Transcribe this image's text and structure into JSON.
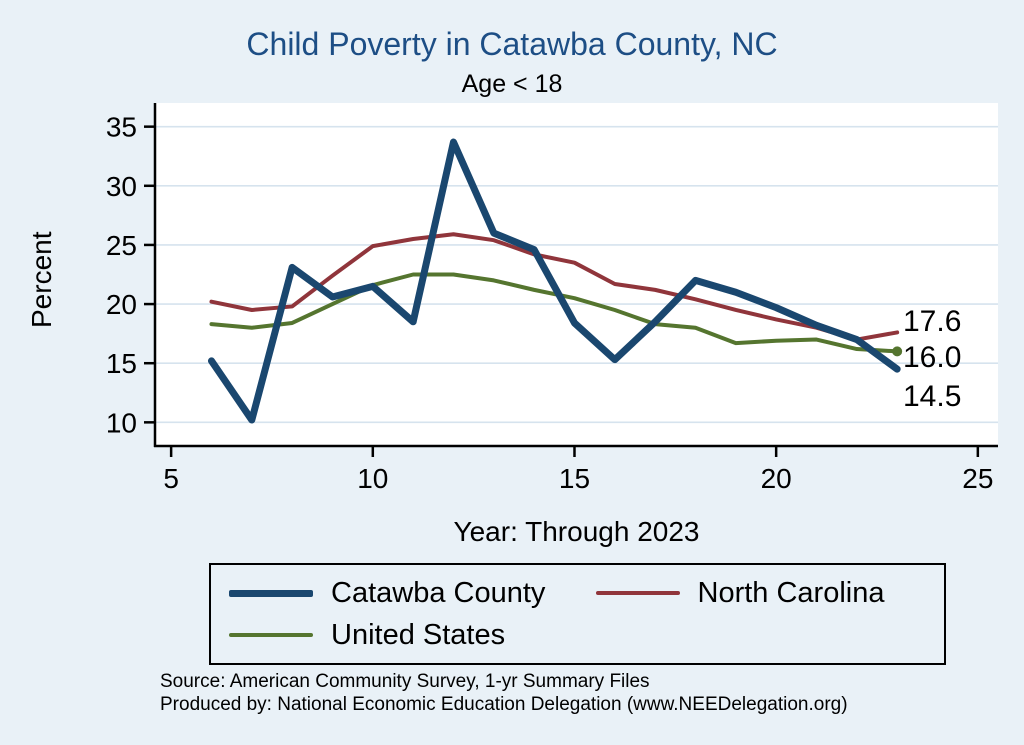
{
  "chart_data": {
    "type": "line",
    "title": "Child Poverty in Catawba County, NC",
    "subtitle": "Age < 18",
    "xlabel": "Year: Through 2023",
    "ylabel": "Percent",
    "xlim": [
      4.6,
      25.5
    ],
    "ylim": [
      8.0,
      37.0
    ],
    "xticks": [
      5,
      10,
      15,
      20,
      25
    ],
    "yticks": [
      10,
      15,
      20,
      25,
      30,
      35
    ],
    "grid": true,
    "legend_position": "bottom",
    "x": [
      6,
      7,
      8,
      9,
      10,
      11,
      12,
      13,
      14,
      15,
      16,
      17,
      18,
      19,
      20,
      21,
      22,
      23
    ],
    "series": [
      {
        "name": "Catawba County",
        "color": "#1a476f",
        "width": 7,
        "values": [
          15.2,
          10.2,
          23.1,
          20.6,
          21.5,
          18.5,
          33.7,
          26.0,
          24.6,
          18.4,
          15.3,
          18.5,
          22.0,
          21.0,
          19.7,
          18.2,
          17.0,
          14.5
        ]
      },
      {
        "name": "North Carolina",
        "color": "#90353b",
        "width": 4,
        "values": [
          20.2,
          19.5,
          19.8,
          22.4,
          24.9,
          25.5,
          25.9,
          25.4,
          24.2,
          23.5,
          21.7,
          21.2,
          20.4,
          19.5,
          18.7,
          18.0,
          17.0,
          17.6
        ]
      },
      {
        "name": "United States",
        "color": "#55752f",
        "width": 4,
        "end_marker": true,
        "values": [
          18.3,
          18.0,
          18.4,
          20.0,
          21.6,
          22.5,
          22.5,
          22.0,
          21.2,
          20.5,
          19.5,
          18.3,
          18.0,
          16.7,
          16.9,
          17.0,
          16.2,
          16.0
        ]
      }
    ],
    "end_labels": [
      {
        "text": "17.6"
      },
      {
        "text": "16.0"
      },
      {
        "text": "14.5"
      }
    ]
  },
  "style": {
    "background": "#e9f1f7",
    "plot_background": "#ffffff",
    "gridline_color": "#d6e3ee",
    "axis_color": "#000000",
    "title_color": "#1d4e85"
  },
  "footer": {
    "line1": "Source: American Community Survey, 1-yr Summary Files",
    "line2": "Produced by: National Economic Education Delegation (www.NEEDelegation.org)"
  }
}
